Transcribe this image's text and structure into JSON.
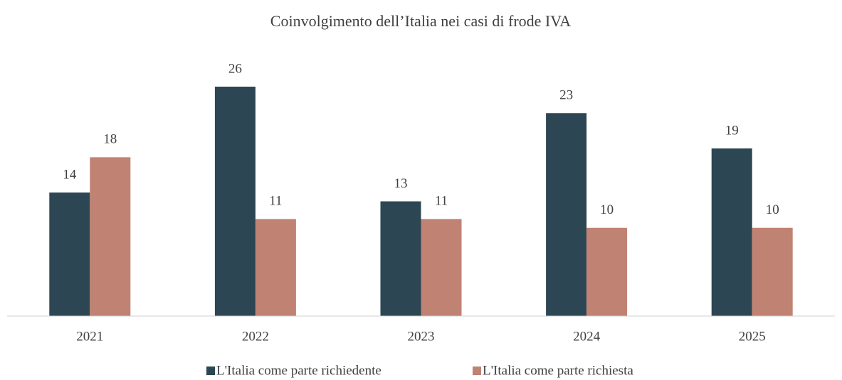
{
  "chart_data": {
    "type": "bar",
    "title": "Coinvolgimento dell’Italia nei casi di frode IVA",
    "categories": [
      "2021",
      "2022",
      "2023",
      "2024",
      "2025"
    ],
    "series": [
      {
        "name": "L'Italia come parte richiedente",
        "color": "#2c4653",
        "values": [
          14,
          26,
          13,
          23,
          19
        ]
      },
      {
        "name": "L'Italia come parte richiesta",
        "color": "#c08272",
        "values": [
          18,
          11,
          11,
          10,
          10
        ]
      }
    ],
    "legend": "bottom"
  }
}
